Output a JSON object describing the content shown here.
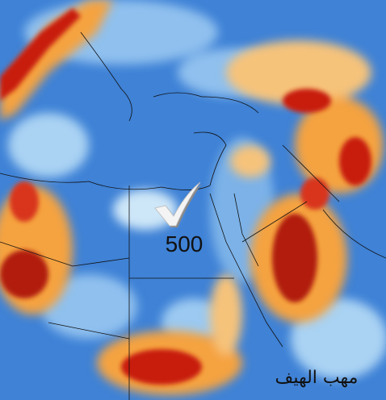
{
  "label": "500",
  "watermark": "مهب الهيف"
}
